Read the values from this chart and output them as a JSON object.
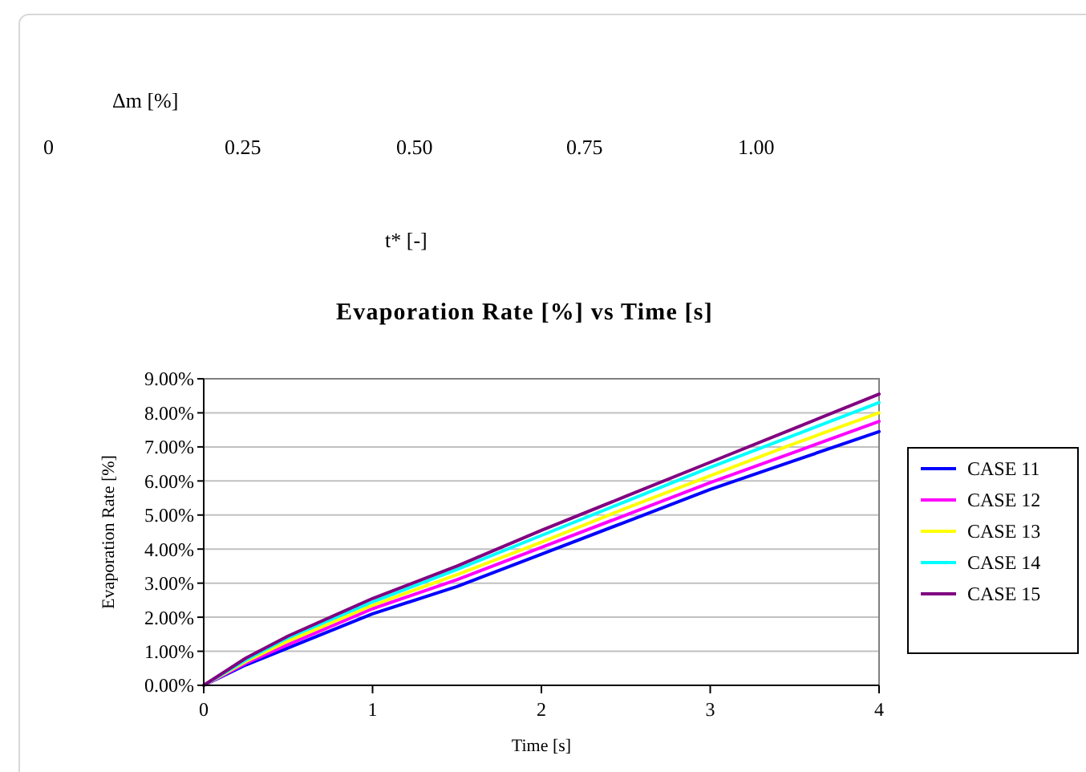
{
  "chart_data": {
    "type": "line",
    "title": "Evaporation Rate [%] vs Time [s]",
    "xlabel": "Time [s]",
    "ylabel": "Evaporation Rate [%]",
    "annotations": [
      "Δm [%]",
      "0",
      "0.25",
      "0.50",
      "0.75",
      "1.00",
      "t* [-]"
    ],
    "x": [
      0,
      0.25,
      0.5,
      1,
      1.5,
      2,
      2.5,
      3,
      3.5,
      4
    ],
    "xlim": [
      0,
      4
    ],
    "xticks": [
      0,
      1,
      2,
      3,
      4
    ],
    "ylim": [
      0,
      9
    ],
    "yticks": [
      {
        "value": 0,
        "label": "0.00%"
      },
      {
        "value": 1,
        "label": "1.00%"
      },
      {
        "value": 2,
        "label": "2.00%"
      },
      {
        "value": 3,
        "label": "3.00%"
      },
      {
        "value": 4,
        "label": "4.00%"
      },
      {
        "value": 5,
        "label": "5.00%"
      },
      {
        "value": 6,
        "label": "6.00%"
      },
      {
        "value": 7,
        "label": "7.00%"
      },
      {
        "value": 8,
        "label": "8.00%"
      },
      {
        "value": 9,
        "label": "9.00%"
      }
    ],
    "grid": "y",
    "legend": "right",
    "marker": "none",
    "line_style": "solid",
    "series": [
      {
        "name": "CASE 11",
        "color": "#0000ff",
        "values": [
          0,
          0.6,
          1.1,
          2.1,
          2.9,
          3.85,
          4.8,
          5.75,
          6.6,
          7.45
        ]
      },
      {
        "name": "CASE 12",
        "color": "#ff00ff",
        "values": [
          0,
          0.65,
          1.2,
          2.25,
          3.1,
          4.05,
          5.0,
          5.95,
          6.85,
          7.75
        ]
      },
      {
        "name": "CASE 13",
        "color": "#ffff00",
        "values": [
          0,
          0.7,
          1.3,
          2.35,
          3.25,
          4.2,
          5.2,
          6.15,
          7.1,
          8.0
        ]
      },
      {
        "name": "CASE 14",
        "color": "#00ffff",
        "values": [
          0,
          0.75,
          1.4,
          2.45,
          3.4,
          4.4,
          5.4,
          6.4,
          7.35,
          8.3
        ]
      },
      {
        "name": "CASE 15",
        "color": "#800080",
        "values": [
          0,
          0.8,
          1.45,
          2.55,
          3.5,
          4.55,
          5.55,
          6.55,
          7.55,
          8.55
        ]
      }
    ]
  }
}
